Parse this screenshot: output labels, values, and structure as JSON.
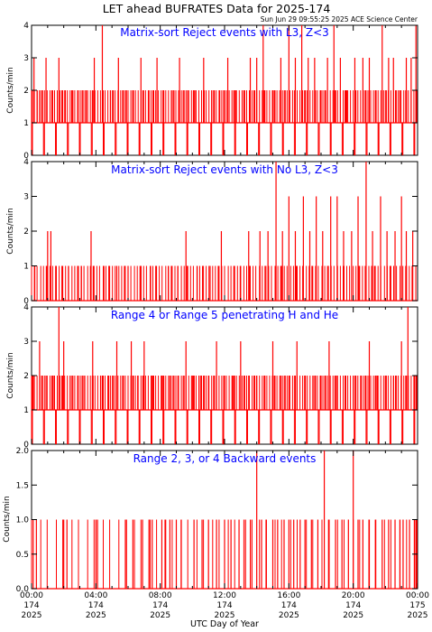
{
  "title": "LET ahead BUFRATES Data for 2025-174",
  "timestamp": "Sun Jun 29 09:55:25 2025 ACE Science Center",
  "xlabel": "UTC Day of Year",
  "colors": {
    "series": "#ff0000",
    "panel_title": "#0000ff",
    "axes": "#000000"
  },
  "x_ticks": [
    {
      "time": "00:00",
      "doy": "174",
      "year": "2025"
    },
    {
      "time": "04:00",
      "doy": "174",
      "year": "2025"
    },
    {
      "time": "08:00",
      "doy": "174",
      "year": "2025"
    },
    {
      "time": "12:00",
      "doy": "174",
      "year": "2025"
    },
    {
      "time": "16:00",
      "doy": "174",
      "year": "2025"
    },
    {
      "time": "20:00",
      "doy": "174",
      "year": "2025"
    },
    {
      "time": "00:00",
      "doy": "175",
      "year": "2025"
    }
  ],
  "chart_data": [
    {
      "type": "line",
      "title": "Matrix-sort Reject events with L3, Z<3",
      "ylabel": "Counts/min",
      "xlim_hours": [
        0,
        24
      ],
      "ylim": [
        0,
        4
      ],
      "y_ticks": [
        "0",
        "1",
        "2",
        "3",
        "4"
      ],
      "grid": false,
      "series": [
        {
          "x_hours": [
            0.15,
            0.35,
            0.5,
            0.9,
            1.3,
            1.7,
            2.1,
            2.5,
            2.9,
            3.4,
            3.9,
            4.4,
            4.9,
            5.4,
            5.9,
            6.3,
            6.8,
            7.3,
            7.8,
            8.2,
            8.7,
            9.2,
            9.7,
            10.2,
            10.7,
            11.2,
            11.7,
            12.2,
            12.7,
            13.2,
            13.6,
            14.0,
            14.4,
            15.0,
            15.5,
            16.0,
            16.4,
            16.8,
            17.2,
            17.6,
            18.0,
            18.4,
            18.8,
            19.2,
            19.6,
            20.1,
            20.6,
            21.0,
            21.4,
            21.8,
            22.2,
            22.5,
            22.9,
            23.3,
            23.6,
            23.9
          ],
          "y": [
            3,
            2,
            2,
            3,
            2,
            3,
            2,
            2,
            2,
            2,
            3,
            4,
            2,
            3,
            2,
            2,
            3,
            2,
            3,
            2,
            2,
            3,
            2,
            2,
            3,
            2,
            2,
            3,
            2,
            2,
            3,
            3,
            4,
            2,
            3,
            4,
            3,
            4,
            3,
            3,
            2,
            3,
            4,
            3,
            2,
            3,
            3,
            3,
            2,
            4,
            3,
            3,
            2,
            3,
            3,
            4
          ],
          "baseline": 1
        }
      ]
    },
    {
      "type": "line",
      "title": "Matrix-sort Reject events with No L3, Z<3",
      "ylabel": "Counts/min",
      "xlim_hours": [
        0,
        24
      ],
      "ylim": [
        0,
        4
      ],
      "y_ticks": [
        "0",
        "1",
        "2",
        "3",
        "4"
      ],
      "grid": false,
      "series": [
        {
          "x_hours": [
            0.2,
            1.0,
            1.2,
            1.5,
            2.3,
            3.1,
            3.7,
            4.5,
            5.3,
            6.0,
            6.8,
            7.4,
            8.5,
            9.1,
            9.6,
            10.3,
            11.1,
            11.8,
            12.6,
            13.0,
            13.5,
            14.2,
            14.7,
            15.2,
            15.6,
            16.0,
            16.4,
            16.9,
            17.3,
            17.7,
            18.1,
            18.6,
            19.0,
            19.4,
            19.9,
            20.3,
            20.8,
            21.2,
            21.7,
            22.1,
            22.6,
            23.0,
            23.3,
            23.7
          ],
          "y": [
            1,
            2,
            2,
            1,
            1,
            1,
            2,
            1,
            1,
            1,
            1,
            1,
            1,
            1,
            2,
            1,
            1,
            2,
            1,
            1,
            2,
            2,
            2,
            4,
            2,
            3,
            2,
            3,
            2,
            3,
            2,
            3,
            3,
            2,
            2,
            3,
            4,
            2,
            3,
            2,
            2,
            3,
            2,
            2
          ],
          "baseline": 0
        }
      ]
    },
    {
      "type": "line",
      "title": "Range 4 or Range 5 penetrating H and He",
      "ylabel": "Counts/min",
      "xlim_hours": [
        0,
        24
      ],
      "ylim": [
        0,
        4
      ],
      "y_ticks": [
        "0",
        "1",
        "2",
        "3",
        "4"
      ],
      "grid": false,
      "series": [
        {
          "x_hours": [
            0.1,
            0.5,
            0.9,
            1.4,
            1.7,
            2.0,
            2.4,
            2.9,
            3.3,
            3.8,
            4.3,
            4.8,
            5.3,
            5.7,
            6.2,
            6.6,
            7.0,
            7.5,
            8.1,
            8.6,
            9.1,
            9.6,
            10.0,
            10.5,
            11.0,
            11.5,
            12.0,
            12.5,
            13.0,
            13.5,
            14.0,
            14.5,
            15.0,
            15.5,
            16.0,
            16.5,
            17.0,
            17.5,
            18.0,
            18.5,
            19.0,
            19.5,
            20.0,
            20.5,
            21.0,
            21.5,
            22.0,
            22.5,
            23.0,
            23.4,
            23.8
          ],
          "y": [
            2,
            3,
            2,
            2,
            4,
            3,
            2,
            2,
            2,
            3,
            2,
            2,
            3,
            2,
            3,
            2,
            3,
            2,
            2,
            2,
            2,
            3,
            2,
            2,
            2,
            3,
            2,
            2,
            3,
            2,
            2,
            2,
            3,
            2,
            2,
            3,
            2,
            2,
            2,
            3,
            2,
            2,
            2,
            2,
            3,
            2,
            2,
            2,
            3,
            4,
            2
          ],
          "baseline": 1
        }
      ]
    },
    {
      "type": "line",
      "title": "Range 2, 3, or 4 Backward events",
      "ylabel": "Counts/min",
      "xlim_hours": [
        0,
        24
      ],
      "ylim": [
        0,
        2
      ],
      "y_ticks": [
        "0.0",
        "0.5",
        "1.0",
        "1.5",
        "2.0"
      ],
      "grid": false,
      "series": [
        {
          "x_hours": [
            0.1,
            0.3,
            2.0,
            2.2,
            4.0,
            4.1,
            5.9,
            6.3,
            6.9,
            7.3,
            7.5,
            8.1,
            8.3,
            8.6,
            9.0,
            9.3,
            10.1,
            10.6,
            11.0,
            11.5,
            12.0,
            12.4,
            12.9,
            13.3,
            13.7,
            14.0,
            14.3,
            14.6,
            15.0,
            15.3,
            15.7,
            16.0,
            16.3,
            16.7,
            17.0,
            17.4,
            17.8,
            18.2,
            18.5,
            18.9,
            19.3,
            19.7,
            20.0,
            20.3,
            20.6,
            21.0,
            21.4,
            21.8,
            22.2,
            22.6,
            22.9,
            23.1,
            23.5,
            23.8,
            23.95
          ],
          "y": [
            1,
            1,
            1,
            1,
            1,
            1,
            1,
            1,
            1,
            1,
            1,
            1,
            1,
            1,
            1,
            1,
            1,
            1,
            1,
            1,
            1,
            1,
            1,
            1,
            1,
            2,
            1,
            1,
            1,
            1,
            1,
            1,
            1,
            1,
            1,
            1,
            1,
            2,
            1,
            1,
            1,
            1,
            2,
            1,
            1,
            1,
            1,
            1,
            1,
            1,
            1,
            1,
            1,
            1,
            1
          ],
          "baseline": 0
        }
      ]
    }
  ]
}
